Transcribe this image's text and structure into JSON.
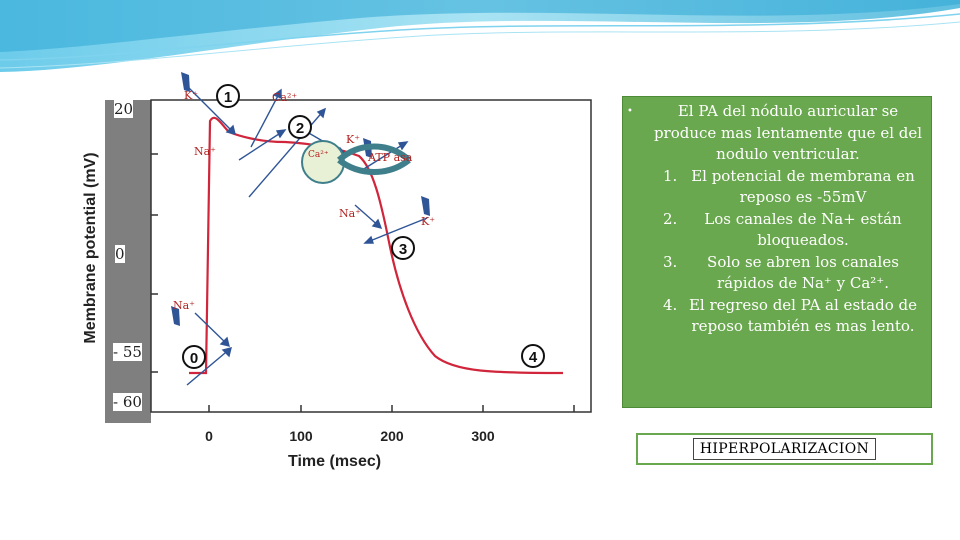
{
  "colors": {
    "notes_bg": "#6aa84f",
    "trace": "#d0253a",
    "label_red": "#b22222",
    "arrow_blue": "#2f5597",
    "channel_teal": "#3f7f8c",
    "gray_panel": "#7f7f7f"
  },
  "figure": {
    "y_axis_title": "Membrane potential (mV)",
    "x_axis_title": "Time (msec)",
    "x_ticks": [
      "0",
      "100",
      "200",
      "300"
    ],
    "y_levels": [
      "20",
      "0",
      "- 55",
      "- 60"
    ],
    "phases": [
      "0",
      "1",
      "2",
      "3",
      "4"
    ],
    "ion_labels": {
      "k_phase1": "K⁺",
      "ca_top": "Ca²⁺",
      "na_phase1": "Na⁺",
      "k_phase2": "K⁺",
      "ca_channel": "Ca²⁺",
      "atpasa": "ATP asa",
      "na_phase3": "Na⁺",
      "k_phase3": "K⁺",
      "na_phase0": "Na⁺"
    }
  },
  "notes": {
    "bullet_icon": "bullet-icon",
    "lead": "El PA del nódulo auricular se produce mas lentamente que el del nodulo ventricular.",
    "items": [
      {
        "num": "1.",
        "text": "El potencial de membrana en reposo es -55mV"
      },
      {
        "num": "2.",
        "text": "Los canales de Na+ están bloqueados."
      },
      {
        "num": "3.",
        "text": "Solo se abren los canales rápidos de Na⁺ y Ca²⁺."
      },
      {
        "num": "4.",
        "text": "El regreso del PA al estado de reposo también es mas lento."
      }
    ]
  },
  "hyperpolarization_label": "HIPERPOLARIZACION"
}
